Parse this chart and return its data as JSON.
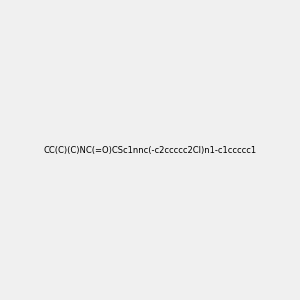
{
  "smiles": "CC(C)(C)NC(=O)CSc1nnc(-c2ccccc2Cl)n1-c1ccccc1",
  "image_size": 300,
  "background_color": "#f0f0f0",
  "title": ""
}
